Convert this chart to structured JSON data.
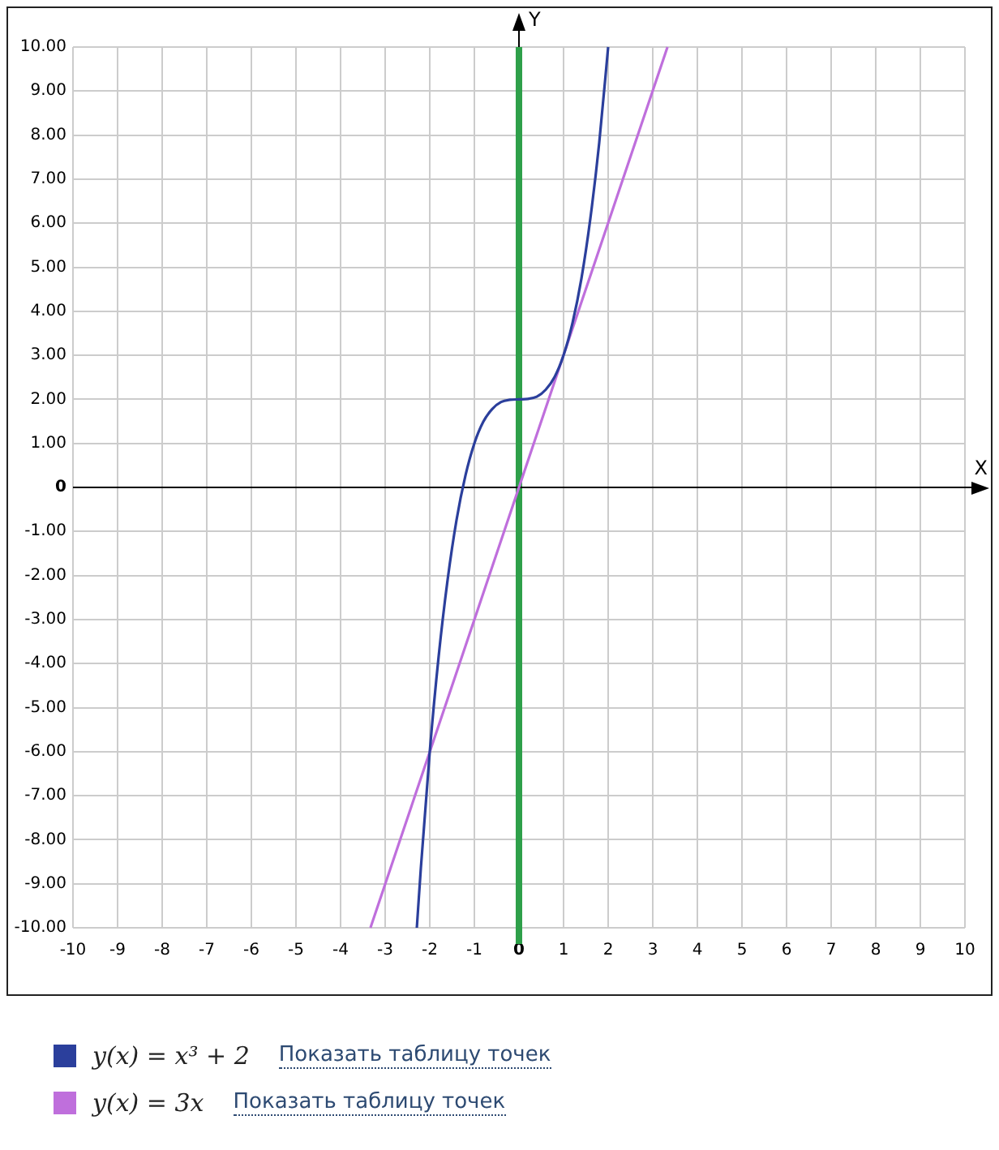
{
  "chart_data": {
    "type": "line",
    "xlabel": "X",
    "ylabel": "Y",
    "xlim": [
      -10,
      10
    ],
    "ylim": [
      -10,
      10
    ],
    "xticks": [
      -10,
      -9,
      -8,
      -7,
      -6,
      -5,
      -4,
      -3,
      -2,
      -1,
      0,
      1,
      2,
      3,
      4,
      5,
      6,
      7,
      8,
      9,
      10
    ],
    "yticks": [
      {
        "value": -10,
        "label": "-10.00"
      },
      {
        "value": -9,
        "label": "-9.00"
      },
      {
        "value": -8,
        "label": "-8.00"
      },
      {
        "value": -7,
        "label": "-7.00"
      },
      {
        "value": -6,
        "label": "-6.00"
      },
      {
        "value": -5,
        "label": "-5.00"
      },
      {
        "value": -4,
        "label": "-4.00"
      },
      {
        "value": -3,
        "label": "-3.00"
      },
      {
        "value": -2,
        "label": "-2.00"
      },
      {
        "value": -1,
        "label": "-1.00"
      },
      {
        "value": 0,
        "label": "0"
      },
      {
        "value": 1,
        "label": "1.00"
      },
      {
        "value": 2,
        "label": "2.00"
      },
      {
        "value": 3,
        "label": "3.00"
      },
      {
        "value": 4,
        "label": "4.00"
      },
      {
        "value": 5,
        "label": "5.00"
      },
      {
        "value": 6,
        "label": "6.00"
      },
      {
        "value": 7,
        "label": "7.00"
      },
      {
        "value": 8,
        "label": "8.00"
      },
      {
        "value": 9,
        "label": "9.00"
      },
      {
        "value": 10,
        "label": "10.00"
      }
    ],
    "series": [
      {
        "name": "y(x) = x³ + 2",
        "color": "#2b3f9c",
        "x": [
          -2.29,
          -2.2,
          -2,
          -1.8,
          -1.6,
          -1.4,
          -1.2,
          -1,
          -0.8,
          -0.6,
          -0.4,
          -0.2,
          0,
          0.2,
          0.4,
          0.6,
          0.8,
          1,
          1.2,
          1.4,
          1.6,
          1.8,
          2
        ],
        "values": [
          -10,
          -8.65,
          -6,
          -3.83,
          -2.1,
          -0.74,
          0.27,
          1,
          1.49,
          1.78,
          1.94,
          1.99,
          2,
          2.01,
          2.06,
          2.22,
          2.51,
          3,
          3.73,
          4.74,
          6.1,
          7.83,
          10
        ]
      },
      {
        "name": "y(x) = 3x",
        "color": "#bf6fdc",
        "x": [
          -3.33,
          0,
          3.33
        ],
        "values": [
          -10,
          0,
          10
        ]
      }
    ],
    "ref_lines": [
      {
        "axis": "x",
        "value": 0,
        "color": "#2ea04a"
      }
    ],
    "annotations": [
      "Показать таблицу точек",
      "Показать таблицу точек"
    ],
    "grid": true,
    "legend": "bottom",
    "marker": "none",
    "line_style": "solid"
  }
}
